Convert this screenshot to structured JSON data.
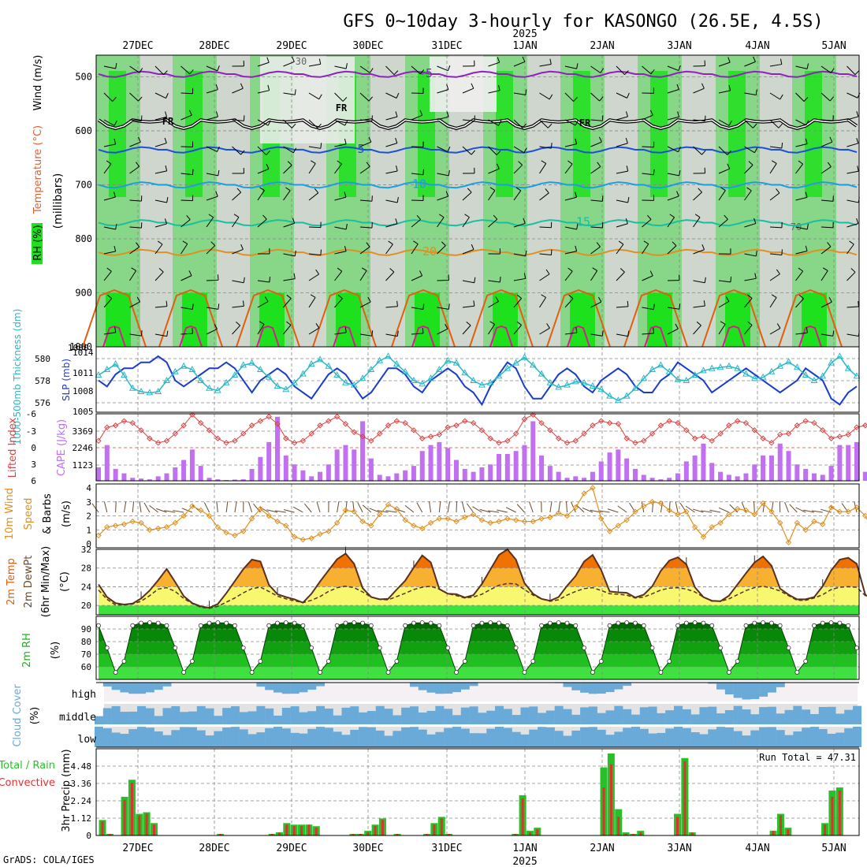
{
  "title": "GFS 0~10day 3-hourly for KASONGO (26.5E, 4.5S)",
  "year_label": "2025",
  "credit": "GrADS: COLA/IGES",
  "chart_data": {
    "type": "meteogram",
    "date_labels": [
      "27DEC",
      "28DEC",
      "29DEC",
      "30DEC",
      "31DEC",
      "1JAN",
      "2JAN",
      "3JAN",
      "4JAN",
      "5JAN"
    ],
    "palette": {
      "rh_light": "#cfd6ce",
      "rh_mid": "#7fd67f",
      "rh_green": "#1ee11e",
      "purple": "#9020c0",
      "blue": "#1c50d8",
      "cyan_blue": "#1aa0e0",
      "teal": "#18c0a0",
      "orange": "#e09020",
      "dark_orange": "#e06010",
      "magenta": "#e01890",
      "slp": "#1c3ccc",
      "thick": "#28b8c8",
      "cape": "#c070f0",
      "li": "#e04040",
      "wind10": "#e09020",
      "temp_hi": "#f07000",
      "temp_mid": "#f8b030",
      "temp_low": "#f8f870",
      "rh2m_dark": "#008000",
      "rh2m_light": "#40e040",
      "cloud": "#6aaad8",
      "precip_total": "#28c028",
      "precip_conv": "#e03030"
    },
    "upper_panel": {
      "ylabel_parts": [
        "RH (%)",
        "Temperature (°C)",
        "Wind (m/s)"
      ],
      "yunits": "(millibars)",
      "ylim": [
        1000,
        460
      ],
      "yticks": [
        500,
        600,
        700,
        800,
        900,
        1000
      ],
      "isotherms": [
        {
          "label": "-5",
          "color_key": "purple",
          "level": 495
        },
        {
          "label": "FR",
          "color_key": "freeze",
          "level": 580
        },
        {
          "label": "5",
          "color_key": "blue",
          "level": 635
        },
        {
          "label": "10",
          "color_key": "cyan_blue",
          "level": 700
        },
        {
          "label": "15",
          "color_key": "teal",
          "level": 770
        },
        {
          "label": "20",
          "color_key": "orange",
          "level": 825
        }
      ],
      "contour_label_30": "30",
      "contour_label_70": "70"
    },
    "thickness_panel": {
      "ylabel_left": "1000-500mb Thickness (dm)",
      "ylabel_right": "SLP (mb)",
      "left_ticks": [
        "580",
        "578",
        "576"
      ],
      "right_ticks": [
        "1014",
        "1011",
        "1008",
        "1005"
      ],
      "corner_label": "1000",
      "slp": [
        1010,
        1009,
        1011,
        1012,
        1012,
        1013,
        1013,
        1014,
        1013,
        1010,
        1009,
        1010,
        1011,
        1012,
        1012,
        1013,
        1012,
        1010,
        1008,
        1010,
        1011,
        1012,
        1011,
        1009,
        1008,
        1007,
        1009,
        1011,
        1012,
        1011,
        1009,
        1007,
        1008,
        1010,
        1012,
        1012,
        1011,
        1009,
        1008,
        1010,
        1011,
        1012,
        1011,
        1009,
        1008,
        1006,
        1009,
        1011,
        1013,
        1012,
        1009,
        1007,
        1007,
        1009,
        1011,
        1012,
        1011,
        1009,
        1008,
        1010,
        1011,
        1012,
        1011,
        1009,
        1008,
        1008,
        1010,
        1011,
        1013,
        1012,
        1011,
        1010,
        1008,
        1009,
        1010,
        1011,
        1012,
        1011,
        1010,
        1009,
        1008,
        1009,
        1010,
        1012,
        1011,
        1010,
        1007,
        1006,
        1008,
        1009
      ],
      "thickness": [
        578.5,
        579,
        579.5,
        578.5,
        577.3,
        577.0,
        576.9,
        577.0,
        578,
        578.8,
        579.3,
        579,
        578,
        577.3,
        577.1,
        577.8,
        578.5,
        579.4,
        579.6,
        579,
        578.3,
        577.5,
        577.2,
        577.8,
        578.6,
        579.5,
        579.9,
        579.3,
        578.5,
        577.8,
        577.6,
        578.2,
        579,
        579.8,
        580.2,
        579.5,
        578.8,
        578,
        577.7,
        578.2,
        579,
        579.8,
        579.6,
        578.7,
        578,
        577.6,
        577.8,
        578.4,
        579.1,
        579.6,
        580.1,
        579.4,
        578.6,
        577.8,
        577.4,
        577.6,
        577.9,
        577.8,
        577.5,
        577.2,
        576.6,
        576.2,
        576.6,
        577.3,
        578.2,
        579,
        579.4,
        578.8,
        578.1,
        578,
        578.5,
        578.9,
        579.1,
        579.2,
        579.3,
        579.1,
        578.6,
        578.2,
        578.3,
        578.8,
        579.3,
        579.7,
        579.2,
        578.5,
        578,
        578.4,
        579.6,
        580.2,
        579.1,
        578.4
      ]
    },
    "cape_panel": {
      "ylabel_left": "Lifted Index",
      "ylabel_right": "CAPE (J/kg)",
      "li_ticks": [
        "-6",
        "-3",
        "0",
        "3",
        "6"
      ],
      "cape_ticks": [
        "3369",
        "2246",
        "1123"
      ],
      "cape": [
        900,
        2400,
        800,
        500,
        200,
        150,
        100,
        300,
        500,
        900,
        1400,
        2100,
        1000,
        200,
        100,
        50,
        80,
        100,
        800,
        1600,
        2600,
        4300,
        1700,
        1100,
        700,
        300,
        600,
        1100,
        2100,
        2400,
        2100,
        4000,
        1500,
        400,
        300,
        500,
        700,
        1000,
        2000,
        2400,
        2600,
        2200,
        1400,
        800,
        600,
        900,
        1100,
        1800,
        1800,
        2000,
        2400,
        4000,
        1700,
        1000,
        600,
        200,
        300,
        200,
        600,
        1300,
        1900,
        2100,
        1500,
        800,
        400,
        200,
        100,
        200,
        500,
        1300,
        1700,
        2500,
        1200,
        600,
        400,
        300,
        500,
        1100,
        1700,
        1700,
        2500,
        2000,
        1100,
        800,
        500,
        400,
        1000,
        2400,
        2400,
        2600,
        600,
        200,
        200,
        200
      ]
    },
    "wind10_panel": {
      "ylabel": "10m Wind Speed & Barbs (m/s)",
      "ylim": [
        0,
        4
      ],
      "yticks": [
        "0",
        "1",
        "2",
        "3",
        "4"
      ],
      "speed": [
        0.6,
        1.2,
        1.3,
        1.4,
        1.6,
        1.5,
        1.0,
        1.1,
        1.2,
        1.5,
        2.0,
        2.7,
        2.4,
        2.0,
        1.2,
        0.8,
        0.6,
        0.9,
        1.8,
        2.5,
        2.0,
        1.6,
        1.3,
        0.5,
        0.3,
        0.4,
        0.7,
        0.9,
        1.5,
        2.4,
        2.3,
        1.6,
        1.3,
        2.1,
        2.8,
        2.5,
        1.7,
        1.3,
        1.1,
        1.5,
        1.8,
        1.8,
        1.6,
        1.9,
        2.1,
        1.7,
        1.5,
        1.6,
        1.8,
        1.7,
        1.6,
        1.6,
        1.8,
        1.9,
        2.2,
        2.0,
        2.6,
        3.6,
        4.0,
        1.8,
        0.9,
        1.3,
        1.7,
        2.3,
        2.7,
        3.0,
        2.9,
        2.4,
        2.1,
        2.3,
        1.2,
        0.5,
        1.2,
        1.5,
        2.1,
        2.5,
        2.4,
        2.1,
        2.9,
        2.3,
        1.5,
        0.1,
        1.5,
        1.0,
        1.6,
        1.4,
        2.6,
        2.3,
        2.3,
        2.6,
        2.0,
        0.9,
        1.0,
        1.4,
        1.8
      ]
    },
    "temp_panel": {
      "ylabel": "2m Temp 2m DewPt (6hr Min/Max) (°C)",
      "ylim": [
        18,
        32
      ],
      "yticks": [
        "20",
        "24",
        "28",
        "32"
      ],
      "temp": [
        24.5,
        21.8,
        20.5,
        20.2,
        20.4,
        21.5,
        23.2,
        25.4,
        27.8,
        25,
        22,
        20.5,
        19.8,
        19.5,
        20.3,
        22.6,
        25.2,
        27.8,
        29.8,
        29.4,
        24.4,
        22.4,
        21.8,
        21.3,
        20.6,
        22.5,
        25.1,
        27.5,
        29.9,
        31.1,
        28.9,
        23.7,
        21.8,
        21.3,
        21.4,
        23.4,
        25.3,
        28.1,
        30.7,
        29.2,
        23.5,
        22.5,
        22.4,
        21.7,
        22.2,
        24.6,
        27.7,
        30.8,
        32.0,
        29.8,
        24.8,
        22.5,
        21.4,
        21.0,
        21.8,
        24.2,
        26.3,
        29.4,
        30.8,
        27.6,
        23.0,
        22.8,
        22.7,
        21.7,
        22.3,
        24.1,
        27.4,
        29.6,
        30.3,
        28.8,
        23.9,
        21.8,
        21.0,
        20.9,
        22.1,
        24.5,
        26.9,
        29.2,
        30.5,
        28.5,
        23.6,
        22.3,
        21.3,
        21.3,
        21.8,
        24.1,
        27.5,
        29.8,
        30.2,
        28.9,
        22.3,
        21.0,
        21.0,
        21.4
      ],
      "dewpt": [
        23.3,
        21.3,
        20.1,
        20.1,
        20.3,
        20.9,
        22.1,
        23.5,
        23.8,
        23.0,
        21.5,
        20.4,
        19.6,
        19.4,
        19.8,
        20.7,
        21.6,
        22.7,
        23.6,
        23.9,
        23.0,
        22.0,
        21.4,
        21.0,
        20.6,
        21.1,
        21.9,
        23.0,
        23.8,
        24.1,
        23.8,
        22.9,
        21.8,
        21.3,
        21.2,
        21.9,
        22.6,
        23.4,
        23.9,
        24.1,
        23.5,
        22.5,
        22.1,
        21.6,
        21.8,
        22.4,
        23.4,
        24.3,
        24.7,
        24.6,
        23.4,
        22.2,
        21.4,
        20.9,
        21.2,
        22.2,
        23.0,
        23.6,
        23.8,
        23.2,
        22.5,
        22.4,
        22.2,
        21.6,
        21.8,
        22.5,
        23.3,
        23.7,
        23.8,
        23.5,
        22.9,
        21.8,
        20.9,
        20.9,
        21.4,
        22.3,
        23.2,
        23.8,
        24.1,
        23.7,
        23.1,
        22.1,
        21.1,
        21.1,
        21.6,
        22.3,
        23.4,
        23.9,
        24.0,
        23.9,
        22.1,
        21.0,
        21.0,
        21.3
      ]
    },
    "rh2m_panel": {
      "ylabel": "2m RH (%)",
      "ylim": [
        50,
        100
      ],
      "yticks": [
        "60",
        "70",
        "80",
        "90"
      ]
    },
    "cloud_panel": {
      "ylabel": "Cloud Cover (%)",
      "levels": [
        "high",
        "middle",
        "low"
      ]
    },
    "precip_panel": {
      "ylabel_left_parts": [
        "Total / Rain",
        "Convective"
      ],
      "ylabel": "3hr Precip (mm)",
      "ylim": [
        0,
        5.6
      ],
      "yticks": [
        "0",
        "1.12",
        "2.24",
        "3.36",
        "4.48"
      ],
      "run_total": "Run Total = 47.31",
      "total": [
        1.0,
        0.1,
        0,
        2.5,
        3.6,
        1.4,
        1.5,
        0.8,
        0,
        0,
        0,
        0,
        0,
        0,
        0,
        0,
        0.1,
        0,
        0,
        0,
        0,
        0,
        0,
        0.1,
        0.2,
        0.8,
        0.7,
        0.7,
        0.7,
        0.6,
        0,
        0,
        0,
        0,
        0.1,
        0.1,
        0.3,
        0.7,
        1.1,
        0,
        0.1,
        0,
        0,
        0,
        0.1,
        0.8,
        1.2,
        0.1,
        0,
        0,
        0,
        0,
        0,
        0,
        0,
        0,
        0.1,
        2.6,
        0.3,
        0.5,
        0,
        0,
        0,
        0,
        0,
        0,
        0,
        0,
        4.4,
        5.3,
        1.7,
        0.2,
        0.1,
        0.3,
        0,
        0,
        0,
        0,
        1.4,
        5.0,
        0.2,
        0,
        0,
        0,
        0,
        0,
        0,
        0,
        0,
        0,
        0,
        0.3,
        1.4,
        0.5,
        0,
        0,
        0,
        0,
        0.8,
        2.9,
        3.1,
        0,
        0
      ],
      "convective": [
        0.9,
        0.1,
        0,
        2.3,
        3.4,
        1.3,
        1.4,
        0.7,
        0,
        0,
        0,
        0,
        0,
        0,
        0,
        0,
        0.1,
        0,
        0,
        0,
        0,
        0,
        0,
        0.1,
        0.2,
        0.7,
        0.6,
        0.6,
        0.7,
        0.5,
        0,
        0,
        0,
        0,
        0.1,
        0.1,
        0.2,
        0.6,
        1.0,
        0,
        0.1,
        0,
        0,
        0,
        0.1,
        0.7,
        1.1,
        0.1,
        0,
        0,
        0,
        0,
        0,
        0,
        0,
        0,
        0.1,
        2.4,
        0.2,
        0.4,
        0,
        0,
        0,
        0,
        0,
        0,
        0,
        0,
        3.1,
        4.6,
        1.2,
        0.1,
        0.1,
        0.2,
        0,
        0,
        0,
        0,
        1.2,
        4.8,
        0.2,
        0,
        0,
        0,
        0,
        0,
        0,
        0,
        0,
        0,
        0,
        0.3,
        1.3,
        0.4,
        0,
        0,
        0,
        0,
        0.7,
        2.5,
        2.9,
        0,
        0
      ]
    }
  }
}
